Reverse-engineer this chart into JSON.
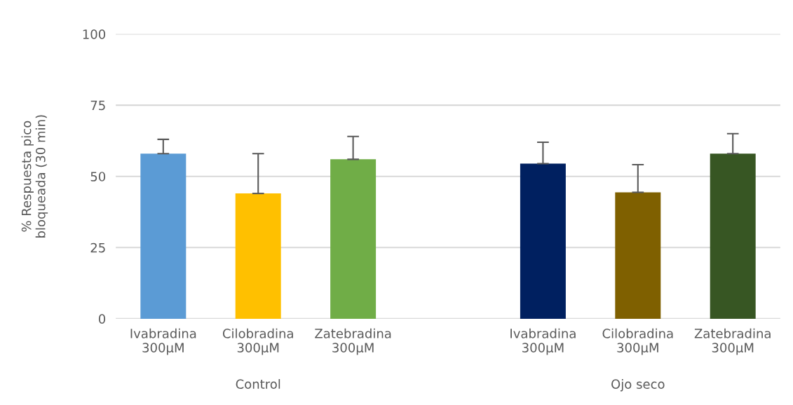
{
  "chart_data": {
    "type": "bar",
    "ylabel": "% Respuesta pico\nbloqueada (30 min)",
    "categories": [
      "Ivabradina\n300µM",
      "Cilobradina\n300µM",
      "Zatebradina\n300µM",
      null,
      "Ivabradina\n300µM",
      "Cilobradina\n300µM",
      "Zatebradina\n300µM"
    ],
    "values": [
      58,
      44,
      56,
      null,
      54.5,
      44.4,
      58
    ],
    "errors": [
      [
        58,
        63
      ],
      [
        44,
        58
      ],
      [
        56,
        64
      ],
      null,
      [
        54.5,
        62
      ],
      [
        44.4,
        54.1
      ],
      [
        58,
        65
      ]
    ],
    "colors": [
      "#5b9bd5",
      "#ffc000",
      "#70ad47",
      null,
      "#002060",
      "#7f6000",
      "#375623"
    ],
    "annotations": [
      "Control",
      "Ojo seco"
    ],
    "ylim": [
      0,
      100
    ],
    "yticks": [
      0,
      25,
      50,
      75,
      100
    ],
    "grid": "y"
  }
}
